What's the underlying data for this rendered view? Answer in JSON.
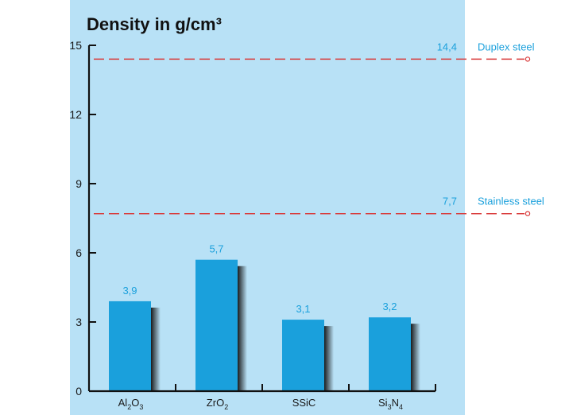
{
  "chart_data": {
    "type": "bar",
    "title": "Density in g/cm³",
    "categories": [
      {
        "base": "Al",
        "parts": [
          {
            "t": "Al"
          },
          {
            "t": "2",
            "sub": true
          },
          {
            "t": "O"
          },
          {
            "t": "3",
            "sub": true
          }
        ]
      },
      {
        "base": "ZrO",
        "parts": [
          {
            "t": "ZrO"
          },
          {
            "t": "2",
            "sub": true
          }
        ]
      },
      {
        "base": "SSiC",
        "parts": [
          {
            "t": "SSiC"
          }
        ]
      },
      {
        "base": "Si",
        "parts": [
          {
            "t": "Si"
          },
          {
            "t": "3",
            "sub": true
          },
          {
            "t": "N"
          },
          {
            "t": "4",
            "sub": true
          }
        ]
      }
    ],
    "values": [
      3.9,
      5.7,
      3.1,
      3.2
    ],
    "value_labels": [
      "3,9",
      "5,7",
      "3,1",
      "3,2"
    ],
    "ylim": [
      0,
      15
    ],
    "yticks": [
      0,
      3,
      6,
      9,
      12,
      15
    ],
    "reference_lines": [
      {
        "name": "Duplex steel",
        "value": 14.4,
        "value_label": "14,4"
      },
      {
        "name": "Stainless steel",
        "value": 7.7,
        "value_label": "7,7"
      }
    ],
    "grid": false,
    "xlabel": "",
    "ylabel": ""
  },
  "colors": {
    "panel": "#b8e1f6",
    "bar": "#1aa0dc",
    "bar_shadow": "#1e1e1e",
    "reference": "#d93a3a",
    "label_accent": "#1aa0dc"
  }
}
